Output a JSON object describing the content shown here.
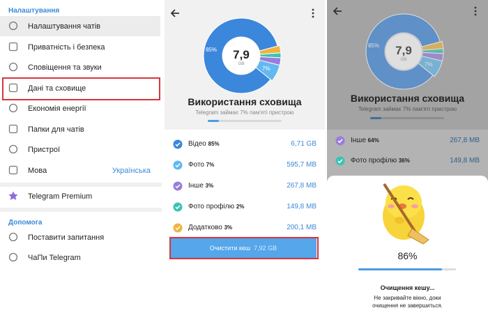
{
  "settings": {
    "section_title": "Налаштування",
    "items": [
      {
        "label": "Налаштування чатів"
      },
      {
        "label": "Приватність і безпека"
      },
      {
        "label": "Сповіщення та звуки"
      },
      {
        "label": "Дані та сховище"
      },
      {
        "label": "Економія енергії"
      },
      {
        "label": "Папки для чатів"
      },
      {
        "label": "Пристрої"
      },
      {
        "label": "Мова",
        "value": "Українська"
      }
    ],
    "premium": "Telegram Premium",
    "help_title": "Допомога",
    "help_items": [
      "Поставити запитання",
      "ЧаПи Telegram"
    ]
  },
  "storage": {
    "total": "7,9",
    "unit": "GB",
    "title": "Використання сховища",
    "subtitle": "Telegram займає 7% пам'яті пристрою",
    "items": [
      {
        "label": "Відео",
        "percent": "85%",
        "size": "6,71 GB",
        "color": "#3b87db"
      },
      {
        "label": "Фото",
        "percent": "7%",
        "size": "595,7 MB",
        "color": "#62b9f0"
      },
      {
        "label": "Інше",
        "percent": "3%",
        "size": "267,8 MB",
        "color": "#9a7ddc"
      },
      {
        "label": "Фото профілю",
        "percent": "2%",
        "size": "149,8 MB",
        "color": "#3cc4b4"
      },
      {
        "label": "Додатково",
        "percent": "3%",
        "size": "200,1 MB",
        "color": "#f0b43c"
      }
    ],
    "clear_button": {
      "label": "Очистити кеш",
      "size": "7,92 GB"
    }
  },
  "clearing": {
    "items": [
      {
        "label": "Інше",
        "percent": "64%",
        "size": "267,8 MB"
      },
      {
        "label": "Фото профілю",
        "percent": "36%",
        "size": "149,8 MB"
      }
    ],
    "progress": "86%",
    "title": "Очищення кешу...",
    "message_lines": [
      "Не закривайте вікно, доки",
      "очищення не завершиться."
    ]
  }
}
